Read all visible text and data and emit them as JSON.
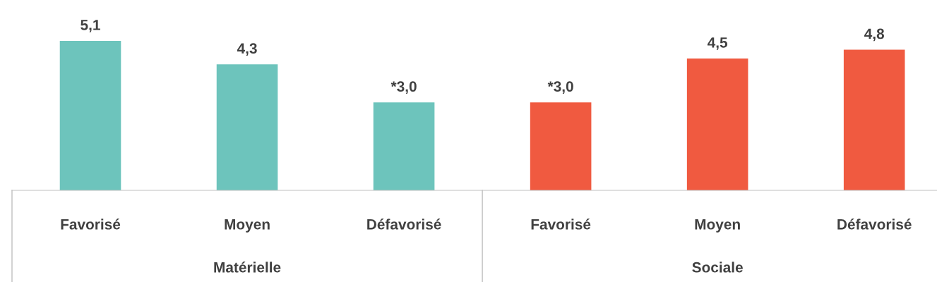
{
  "chart_data": {
    "type": "bar",
    "categories": [
      "Favorisé",
      "Moyen",
      "Défavorisé",
      "Favorisé",
      "Moyen",
      "Défavorisé"
    ],
    "values": [
      5.1,
      4.3,
      3.0,
      3.0,
      4.5,
      4.8
    ],
    "colors": [
      "#6dc4bc",
      "#6dc4bc",
      "#6dc4bc",
      "#f05a40",
      "#f05a40",
      "#f05a40"
    ],
    "value_labels": [
      "5,1",
      "4,3",
      "*3,0",
      "*3,0",
      "4,5",
      "4,8"
    ],
    "annotations": [
      "Matérielle",
      "Sociale"
    ]
  }
}
